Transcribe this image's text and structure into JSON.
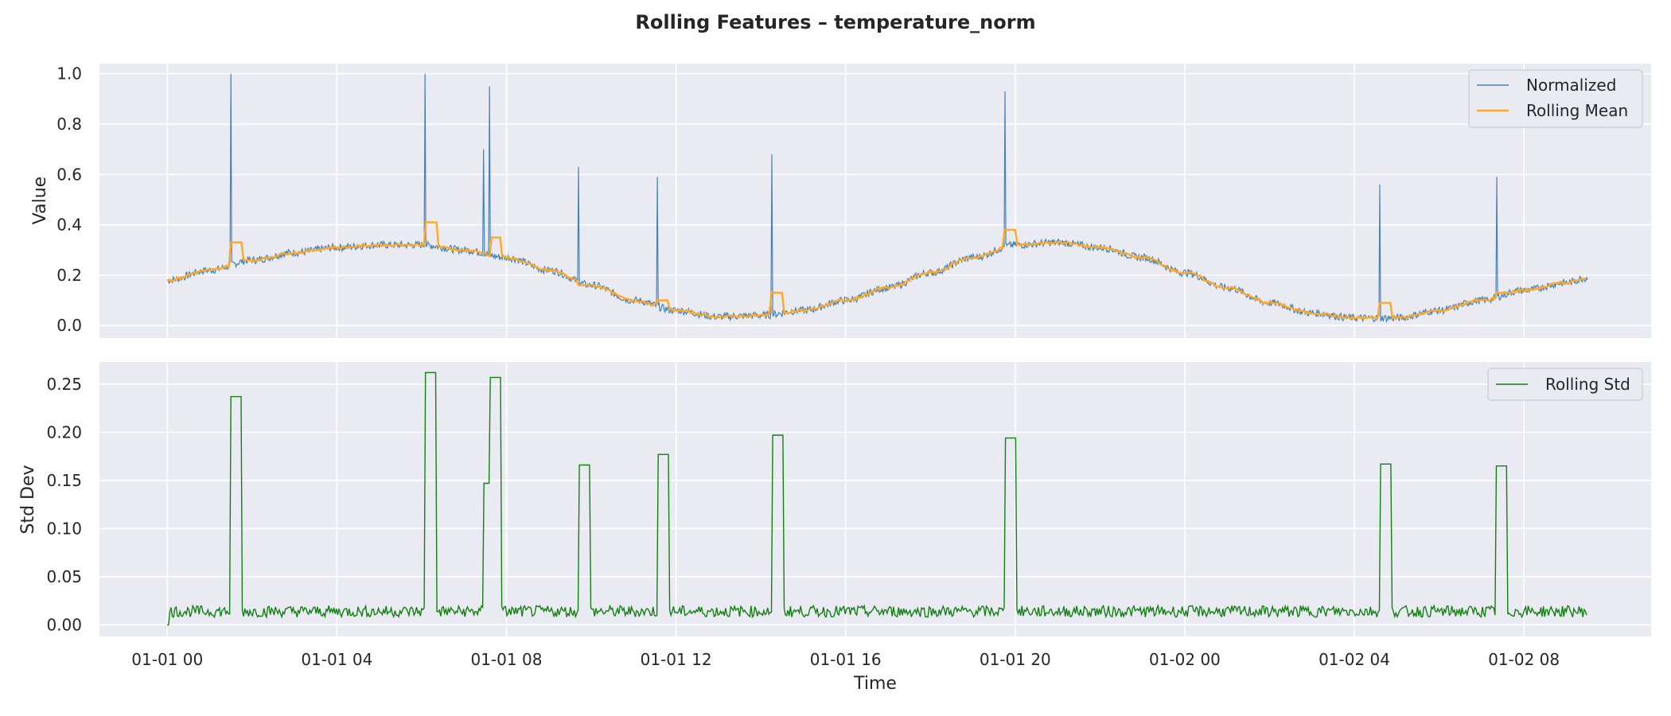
{
  "chart_data": [
    {
      "type": "line",
      "title": "Rolling Features – temperature_norm",
      "xlabel": "",
      "ylabel": "Value",
      "ylim": [
        -0.05,
        1.04
      ],
      "y_ticks": [
        "0.0",
        "0.2",
        "0.4",
        "0.6",
        "0.8",
        "1.0"
      ],
      "x_ticks": [
        "01-01 00",
        "01-01 04",
        "01-01 08",
        "01-01 12",
        "01-01 16",
        "01-01 20",
        "01-02 00",
        "01-02 04",
        "01-02 08"
      ],
      "x_range_hours": [
        -1.6,
        35
      ],
      "grid": true,
      "legend": "top-right",
      "series": [
        {
          "name": "Normalized",
          "color": "#4682b4",
          "baseline": {
            "x": [
              0,
              1,
              2,
              3,
              4,
              5,
              6,
              7,
              8,
              9,
              10,
              11,
              12,
              13,
              14,
              15,
              16,
              17,
              18,
              19,
              20,
              21,
              22,
              23,
              24,
              25,
              26,
              27,
              28,
              29,
              30,
              31,
              32,
              33,
              33.5
            ],
            "y": [
              0.18,
              0.22,
              0.26,
              0.29,
              0.31,
              0.32,
              0.32,
              0.3,
              0.27,
              0.22,
              0.16,
              0.1,
              0.06,
              0.035,
              0.04,
              0.06,
              0.1,
              0.15,
              0.21,
              0.27,
              0.32,
              0.33,
              0.31,
              0.27,
              0.21,
              0.15,
              0.09,
              0.05,
              0.03,
              0.03,
              0.06,
              0.1,
              0.14,
              0.17,
              0.19
            ]
          },
          "spikes": [
            {
              "x": 1.5,
              "y": 1.0
            },
            {
              "x": 6.08,
              "y": 1.0
            },
            {
              "x": 7.45,
              "y": 0.7
            },
            {
              "x": 7.6,
              "y": 0.95
            },
            {
              "x": 9.7,
              "y": 0.63
            },
            {
              "x": 11.55,
              "y": 0.59
            },
            {
              "x": 14.25,
              "y": 0.68
            },
            {
              "x": 19.75,
              "y": 0.93
            },
            {
              "x": 28.6,
              "y": 0.56
            },
            {
              "x": 31.35,
              "y": 0.59
            }
          ]
        },
        {
          "name": "Rolling Mean",
          "color": "#ffa824",
          "bumps": [
            {
              "x": 1.5,
              "y": 0.33
            },
            {
              "x": 6.08,
              "y": 0.41
            },
            {
              "x": 7.6,
              "y": 0.35
            },
            {
              "x": 9.7,
              "y": 0.16
            },
            {
              "x": 11.55,
              "y": 0.1
            },
            {
              "x": 14.25,
              "y": 0.13
            },
            {
              "x": 19.75,
              "y": 0.38
            },
            {
              "x": 28.6,
              "y": 0.09
            },
            {
              "x": 31.35,
              "y": 0.13
            }
          ]
        }
      ]
    },
    {
      "type": "line",
      "xlabel": "Time",
      "ylabel": "Std Dev",
      "ylim": [
        -0.012,
        0.273
      ],
      "y_ticks": [
        "0.00",
        "0.05",
        "0.10",
        "0.15",
        "0.20",
        "0.25"
      ],
      "x_ticks": [
        "01-01 00",
        "01-01 04",
        "01-01 08",
        "01-01 12",
        "01-01 16",
        "01-01 20",
        "01-02 00",
        "01-02 04",
        "01-02 08"
      ],
      "x_range_hours": [
        -1.6,
        35
      ],
      "grid": true,
      "legend": "top-right",
      "series": [
        {
          "name": "Rolling Std",
          "color": "#138013",
          "baseline_y": 0.014,
          "pulses": [
            {
              "x": 1.5,
              "y": 0.237
            },
            {
              "x": 6.08,
              "y": 0.262
            },
            {
              "x": 7.45,
              "y": 0.147
            },
            {
              "x": 7.6,
              "y": 0.257
            },
            {
              "x": 9.7,
              "y": 0.166
            },
            {
              "x": 11.55,
              "y": 0.177
            },
            {
              "x": 14.25,
              "y": 0.197
            },
            {
              "x": 19.75,
              "y": 0.194
            },
            {
              "x": 28.6,
              "y": 0.167
            },
            {
              "x": 31.35,
              "y": 0.165
            }
          ]
        }
      ]
    }
  ]
}
